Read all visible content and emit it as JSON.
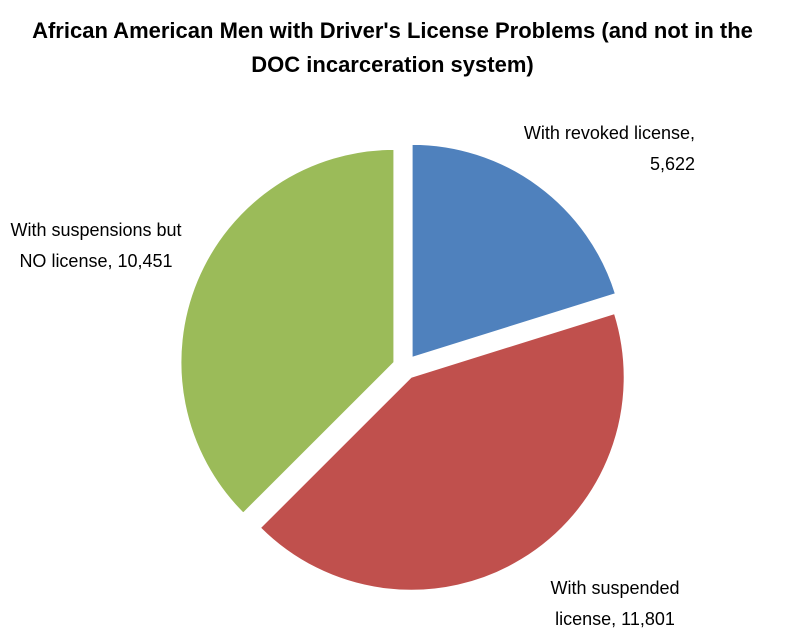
{
  "chart_data": {
    "type": "pie",
    "title": "African American Men with Driver's License Problems (and not in the DOC incarceration system)",
    "categories": [
      "With revoked license",
      "With suspended license",
      "With suspensions but NO license"
    ],
    "values": [
      5622,
      11801,
      10451
    ],
    "value_labels": [
      "5,622",
      "11,801",
      "10,451"
    ],
    "colors": [
      "#4f81bd",
      "#c0504d",
      "#9bbb59"
    ]
  }
}
